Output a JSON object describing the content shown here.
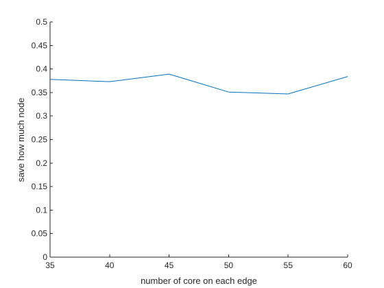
{
  "chart_data": {
    "type": "line",
    "title": "",
    "xlabel": "number of core on each edge",
    "ylabel": "save how much node",
    "x": [
      35,
      40,
      45,
      50,
      55,
      60
    ],
    "series": [
      {
        "values": [
          0.378,
          0.373,
          0.389,
          0.351,
          0.347,
          0.384
        ],
        "color": "#0072BD"
      }
    ],
    "xlim": [
      35,
      60
    ],
    "ylim": [
      0,
      0.5
    ],
    "xticks": [
      35,
      40,
      45,
      50,
      55,
      60
    ],
    "xtick_labels": [
      "35",
      "40",
      "45",
      "50",
      "55",
      "60"
    ],
    "yticks": [
      0,
      0.05,
      0.1,
      0.15,
      0.2,
      0.25,
      0.3,
      0.35,
      0.4,
      0.45,
      0.5
    ],
    "ytick_labels": [
      "0",
      "0.05",
      "0.1",
      "0.15",
      "0.2",
      "0.25",
      "0.3",
      "0.35",
      "0.4",
      "0.45",
      "0.5"
    ],
    "grid": false,
    "legend": "none"
  }
}
